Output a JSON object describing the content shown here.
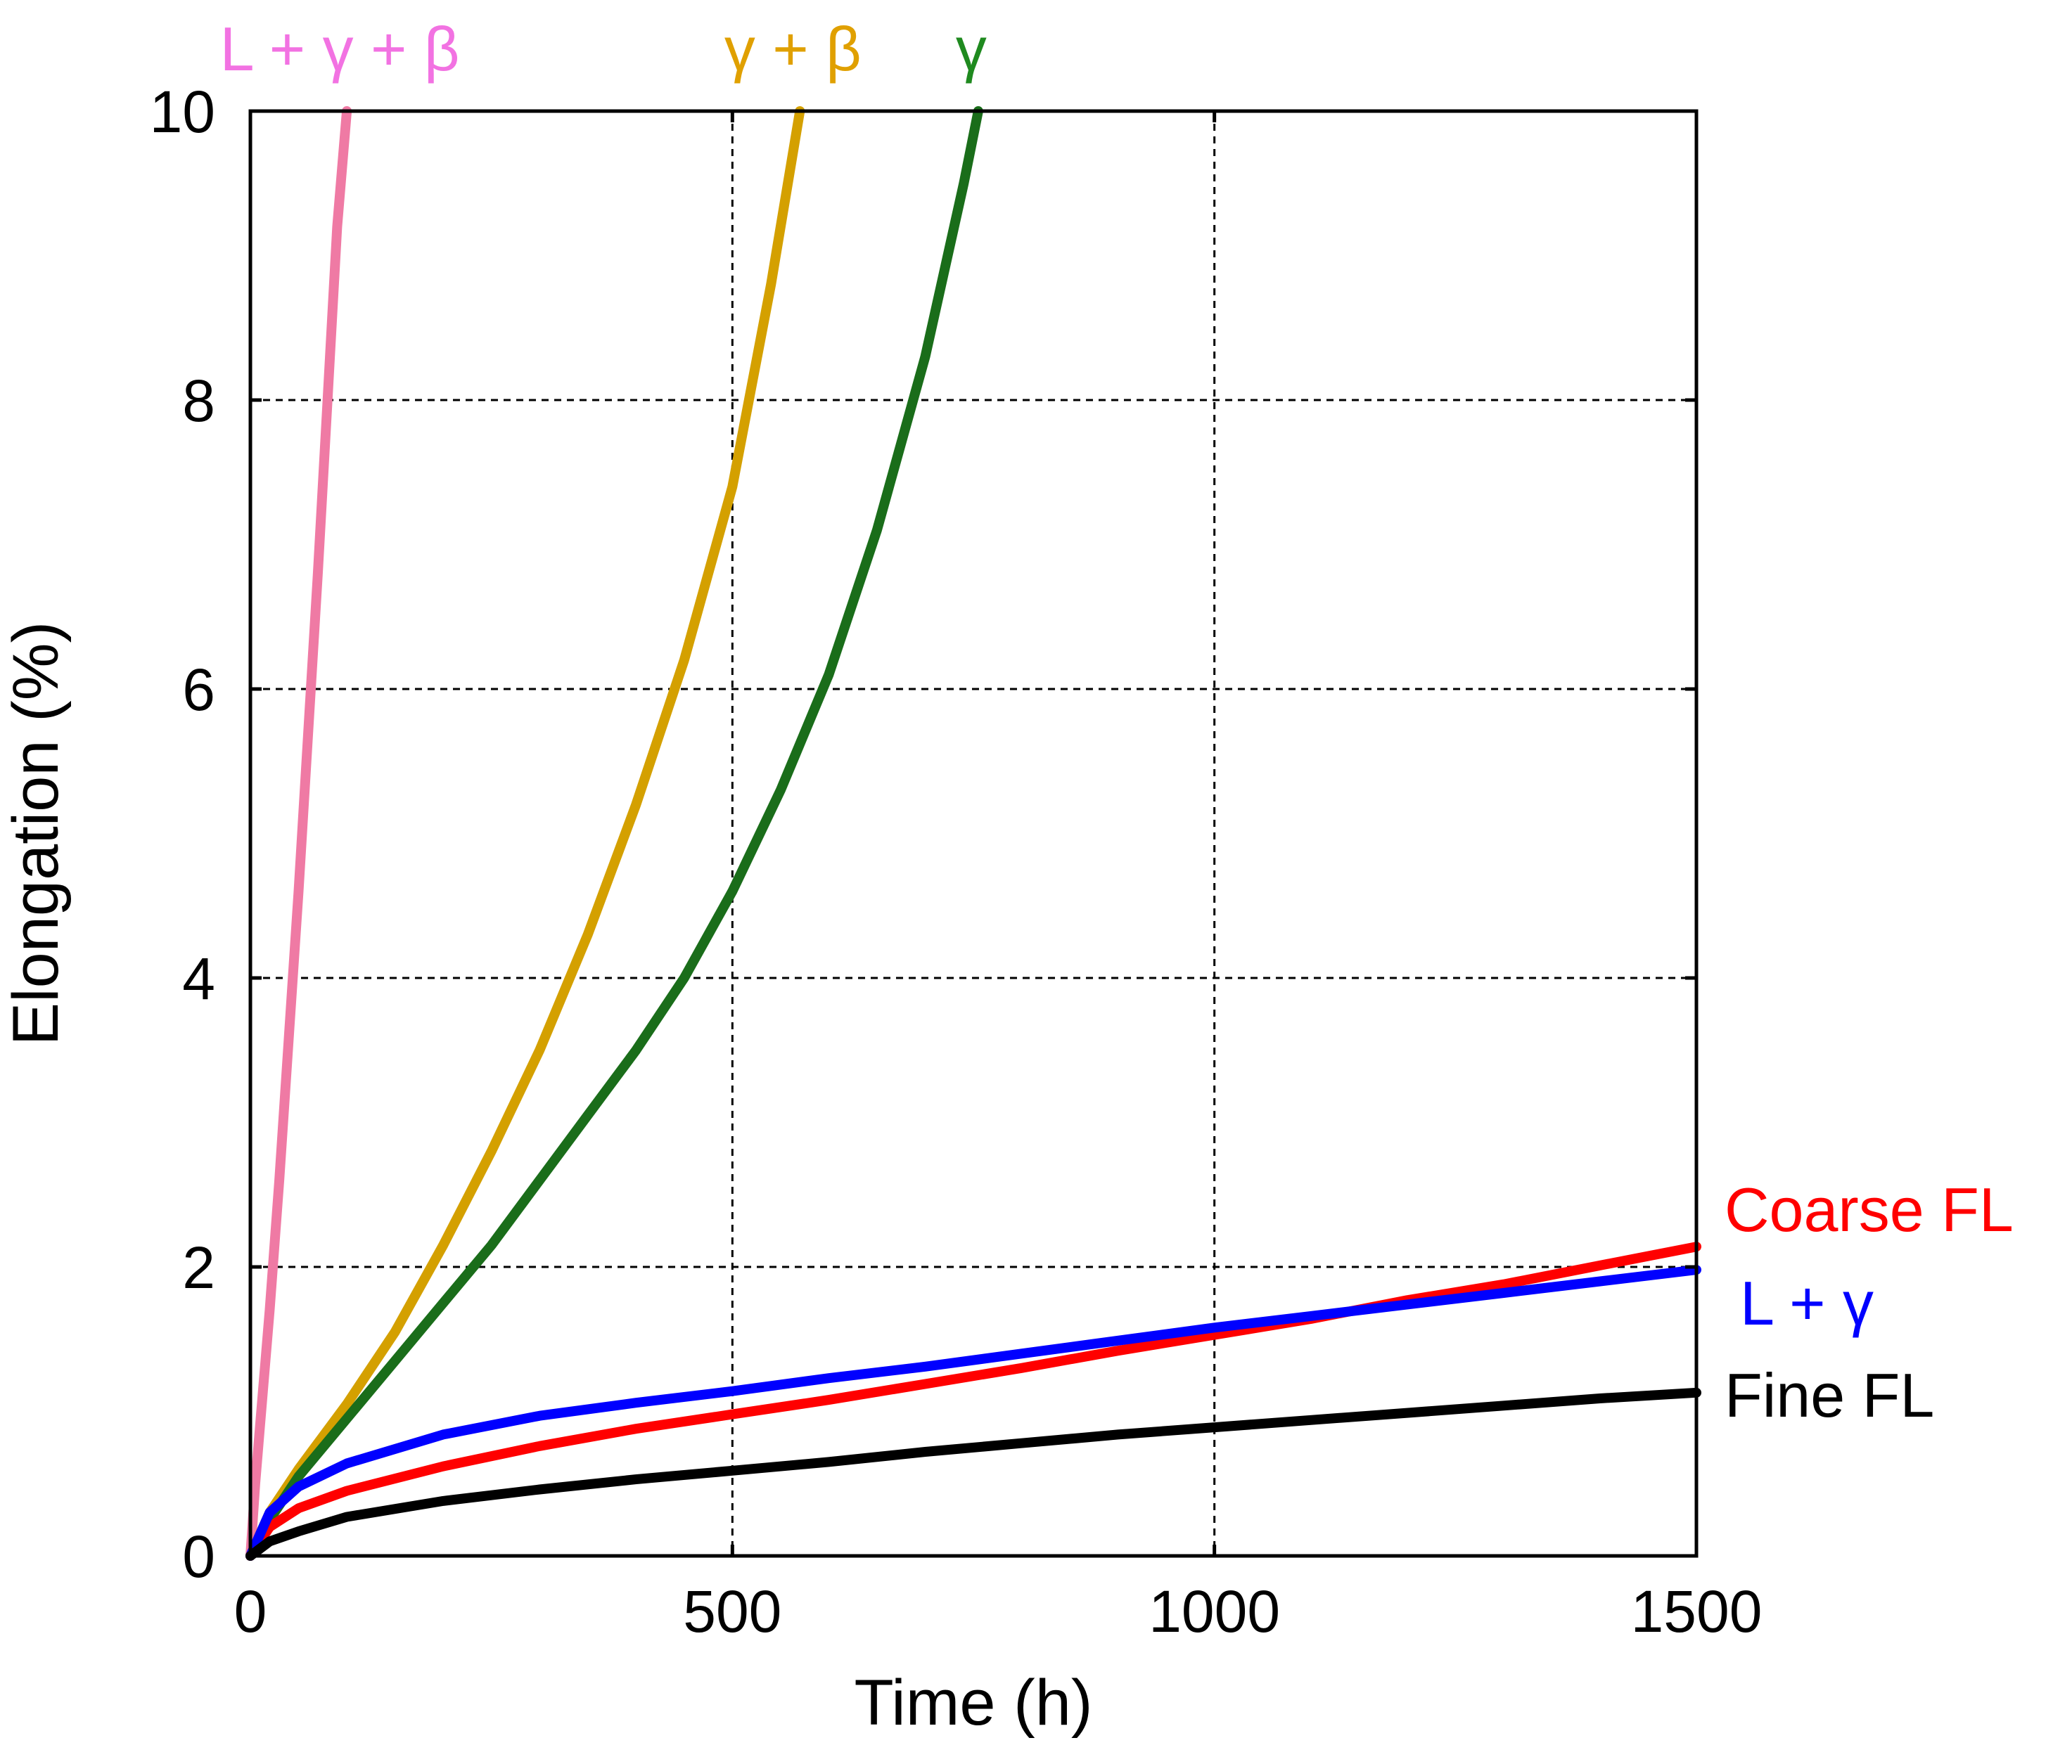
{
  "chart_data": {
    "type": "line",
    "title": "",
    "xlabel": "Time (h)",
    "ylabel": "Elongation (%)",
    "xlim": [
      0,
      1500
    ],
    "ylim": [
      0,
      10
    ],
    "xticks": [
      0,
      500,
      1000,
      1500
    ],
    "yticks": [
      0,
      2,
      4,
      6,
      8,
      10
    ],
    "x_tick_labels": [
      "0",
      "500",
      "1000",
      "1500"
    ],
    "y_tick_labels": [
      "0",
      "2",
      "4",
      "6",
      "8",
      "10"
    ],
    "grid": true,
    "series": [
      {
        "name": "L + γ + β",
        "color": "#ef7aa4",
        "label_color": "#f272e2",
        "label_placement": "top",
        "x": [
          0,
          5,
          10,
          20,
          30,
          40,
          50,
          60,
          70,
          80,
          90,
          100
        ],
        "y": [
          0,
          0.5,
          0.9,
          1.7,
          2.6,
          3.6,
          4.6,
          5.7,
          6.8,
          8.0,
          9.2,
          10.0
        ]
      },
      {
        "name": "γ + β",
        "color": "#d4a000",
        "label_color": "#e0a000",
        "label_placement": "top",
        "x": [
          0,
          20,
          50,
          100,
          150,
          200,
          250,
          300,
          350,
          400,
          450,
          500,
          540,
          570
        ],
        "y": [
          0,
          0.3,
          0.6,
          1.05,
          1.55,
          2.15,
          2.8,
          3.5,
          4.3,
          5.2,
          6.2,
          7.4,
          8.8,
          10.0
        ]
      },
      {
        "name": "γ",
        "color": "#1a6d1a",
        "label_color": "#1f8a1f",
        "label_placement": "top",
        "x": [
          0,
          20,
          50,
          100,
          150,
          200,
          250,
          300,
          350,
          400,
          450,
          500,
          550,
          600,
          650,
          700,
          740,
          755
        ],
        "y": [
          0,
          0.25,
          0.55,
          0.95,
          1.35,
          1.75,
          2.15,
          2.6,
          3.05,
          3.5,
          4.0,
          4.6,
          5.3,
          6.1,
          7.1,
          8.3,
          9.5,
          10.0
        ]
      },
      {
        "name": "Coarse FL",
        "color": "#ff0000",
        "label_color": "#ff0000",
        "label_placement": "right",
        "x": [
          0,
          20,
          50,
          100,
          200,
          300,
          400,
          500,
          600,
          700,
          800,
          900,
          1000,
          1100,
          1200,
          1300,
          1400,
          1500
        ],
        "y": [
          0,
          0.2,
          0.33,
          0.45,
          0.62,
          0.76,
          0.88,
          0.98,
          1.08,
          1.19,
          1.3,
          1.42,
          1.53,
          1.64,
          1.77,
          1.88,
          2.01,
          2.14
        ]
      },
      {
        "name": "L + γ",
        "color": "#0000ff",
        "label_color": "#0000ff",
        "label_placement": "right",
        "x": [
          0,
          20,
          50,
          100,
          200,
          300,
          400,
          500,
          600,
          700,
          800,
          900,
          1000,
          1100,
          1200,
          1300,
          1400,
          1500
        ],
        "y": [
          0,
          0.3,
          0.48,
          0.64,
          0.84,
          0.97,
          1.06,
          1.14,
          1.23,
          1.31,
          1.4,
          1.49,
          1.58,
          1.66,
          1.74,
          1.82,
          1.9,
          1.98
        ]
      },
      {
        "name": "Fine FL",
        "color": "#000000",
        "label_color": "#000000",
        "label_placement": "right",
        "x": [
          0,
          20,
          50,
          100,
          200,
          300,
          400,
          500,
          600,
          700,
          800,
          900,
          1000,
          1100,
          1200,
          1300,
          1400,
          1500
        ],
        "y": [
          0,
          0.1,
          0.17,
          0.27,
          0.38,
          0.46,
          0.53,
          0.59,
          0.65,
          0.72,
          0.78,
          0.84,
          0.89,
          0.94,
          0.99,
          1.04,
          1.09,
          1.13
        ]
      }
    ]
  }
}
